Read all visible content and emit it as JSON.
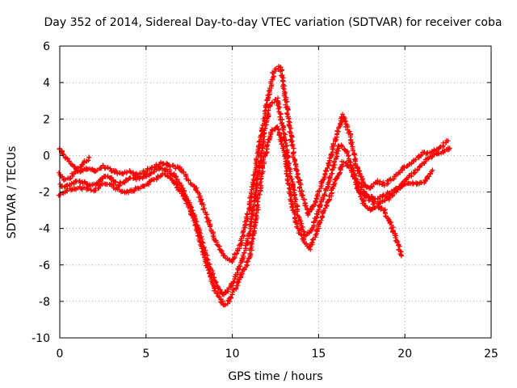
{
  "chart_data": {
    "type": "scatter",
    "title": "Day 352 of 2014, Sidereal Day-to-day VTEC variation (SDTVAR) for receiver coba",
    "xlabel": "GPS time / hours",
    "ylabel": "SDTVAR / TECUs",
    "xlim": [
      0,
      25
    ],
    "ylim": [
      -10,
      6
    ],
    "xticks": [
      0,
      5,
      10,
      15,
      20,
      25
    ],
    "yticks": [
      -10,
      -8,
      -6,
      -4,
      -2,
      0,
      2,
      4,
      6
    ],
    "xtick_labels": [
      "0",
      "5",
      "10",
      "15",
      "20",
      "25"
    ],
    "ytick_labels": [
      "-10",
      "-8",
      "-6",
      "-4",
      "-2",
      "0",
      "2",
      "4",
      "6"
    ],
    "grid": true,
    "marker": "+",
    "color": "#ff0000",
    "series": [
      {
        "name": "main-track",
        "x": [
          0.0,
          0.3,
          0.6,
          1.0,
          1.4,
          1.8,
          2.2,
          2.6,
          3.0,
          3.4,
          3.8,
          4.2,
          4.6,
          5.0,
          5.4,
          5.8,
          6.2,
          6.6,
          7.0,
          7.4,
          7.8,
          8.2,
          8.6,
          9.0,
          9.4,
          9.8,
          10.2,
          10.6,
          11.0,
          11.4,
          11.8,
          12.2,
          12.6,
          13.0,
          13.4,
          13.8,
          14.2,
          14.6,
          15.0,
          15.4,
          15.8,
          16.2,
          16.6,
          17.0,
          17.4,
          17.8,
          18.2,
          18.6,
          19.0,
          19.4,
          19.8,
          20.2,
          20.6,
          21.0,
          21.4,
          21.8,
          22.2,
          22.6
        ],
        "y": [
          -1.6,
          -1.7,
          -1.6,
          -1.4,
          -1.5,
          -1.7,
          -1.5,
          -1.1,
          -1.2,
          -1.6,
          -1.4,
          -1.2,
          -1.3,
          -1.1,
          -0.9,
          -0.7,
          -0.8,
          -1.0,
          -1.6,
          -2.4,
          -3.3,
          -4.6,
          -5.8,
          -6.9,
          -7.6,
          -7.4,
          -6.6,
          -5.7,
          -4.2,
          -1.6,
          0.9,
          2.8,
          3.1,
          1.2,
          -1.2,
          -3.2,
          -4.4,
          -4.1,
          -3.0,
          -2.0,
          -0.8,
          0.6,
          0.3,
          -0.9,
          -1.7,
          -2.3,
          -2.6,
          -2.6,
          -2.4,
          -2.0,
          -1.6,
          -1.2,
          -0.9,
          -0.5,
          -0.1,
          0.1,
          0.2,
          0.4
        ]
      },
      {
        "name": "upper-envelope",
        "x": [
          0.0,
          0.4,
          0.8,
          1.2,
          1.6,
          2.0,
          2.5,
          3.0,
          3.5,
          4.0,
          4.5,
          5.0,
          5.5,
          6.0,
          6.5,
          7.0,
          7.5,
          8.0,
          8.5,
          9.0,
          9.5,
          10.0,
          10.5,
          11.0,
          11.5,
          12.0,
          12.4,
          12.8,
          13.2,
          13.6,
          14.0,
          14.4,
          14.8,
          15.2,
          15.6,
          16.0,
          16.4,
          16.8,
          17.2,
          17.6,
          18.0,
          18.4,
          18.8,
          19.2,
          19.6,
          20.0,
          20.5,
          21.0,
          21.5,
          22.0,
          22.5
        ],
        "y": [
          0.4,
          -0.2,
          -0.6,
          -0.9,
          -0.7,
          -0.9,
          -0.6,
          -0.8,
          -1.0,
          -0.9,
          -1.1,
          -0.8,
          -0.6,
          -0.4,
          -0.6,
          -0.7,
          -1.4,
          -2.0,
          -3.3,
          -4.6,
          -5.5,
          -5.8,
          -4.8,
          -2.8,
          0.2,
          2.8,
          4.6,
          4.9,
          2.4,
          -0.3,
          -2.0,
          -3.2,
          -2.6,
          -1.4,
          -0.4,
          1.0,
          2.2,
          1.2,
          -0.6,
          -1.6,
          -1.8,
          -1.4,
          -1.6,
          -1.3,
          -1.0,
          -0.6,
          -0.3,
          0.1,
          0.2,
          0.4,
          0.8
        ]
      },
      {
        "name": "lower-envelope",
        "x": [
          0.0,
          0.5,
          1.0,
          1.5,
          2.0,
          2.5,
          3.0,
          3.5,
          4.0,
          4.5,
          5.0,
          5.5,
          6.0,
          6.5,
          7.0,
          7.5,
          8.0,
          8.5,
          9.0,
          9.5,
          9.8,
          10.2,
          10.6,
          11.0,
          11.4,
          11.8,
          12.2,
          12.6,
          13.0,
          13.4,
          13.8,
          14.2,
          14.5,
          14.8,
          15.2,
          15.6,
          16.0,
          16.4,
          16.8,
          17.2,
          17.6,
          18.0,
          18.4,
          18.8,
          19.2,
          19.5,
          19.8
        ],
        "y": [
          -2.2,
          -1.9,
          -1.8,
          -1.8,
          -1.9,
          -1.5,
          -1.6,
          -2.0,
          -2.0,
          -1.8,
          -1.6,
          -1.3,
          -1.0,
          -1.2,
          -2.0,
          -2.8,
          -4.2,
          -5.9,
          -7.4,
          -8.2,
          -8.0,
          -7.2,
          -6.4,
          -5.6,
          -3.2,
          -0.4,
          1.2,
          1.6,
          0.2,
          -2.4,
          -4.0,
          -4.8,
          -5.1,
          -4.4,
          -3.4,
          -2.4,
          -1.4,
          -0.4,
          -0.6,
          -1.6,
          -2.6,
          -3.0,
          -2.8,
          -3.0,
          -3.8,
          -4.6,
          -5.5
        ]
      },
      {
        "name": "early-branch",
        "x": [
          0.0,
          0.3,
          0.6,
          0.9,
          1.2,
          1.5,
          1.7
        ],
        "y": [
          -1.0,
          -1.4,
          -1.2,
          -0.9,
          -0.6,
          -0.3,
          -0.1
        ]
      },
      {
        "name": "late-branch",
        "x": [
          17.2,
          17.6,
          18.0,
          18.4,
          18.8,
          19.2,
          19.6,
          20.0,
          20.4,
          20.8,
          21.2,
          21.6
        ],
        "y": [
          -1.8,
          -2.1,
          -2.3,
          -2.4,
          -2.2,
          -2.0,
          -1.8,
          -1.6,
          -1.5,
          -1.6,
          -1.4,
          -0.8
        ]
      }
    ]
  }
}
